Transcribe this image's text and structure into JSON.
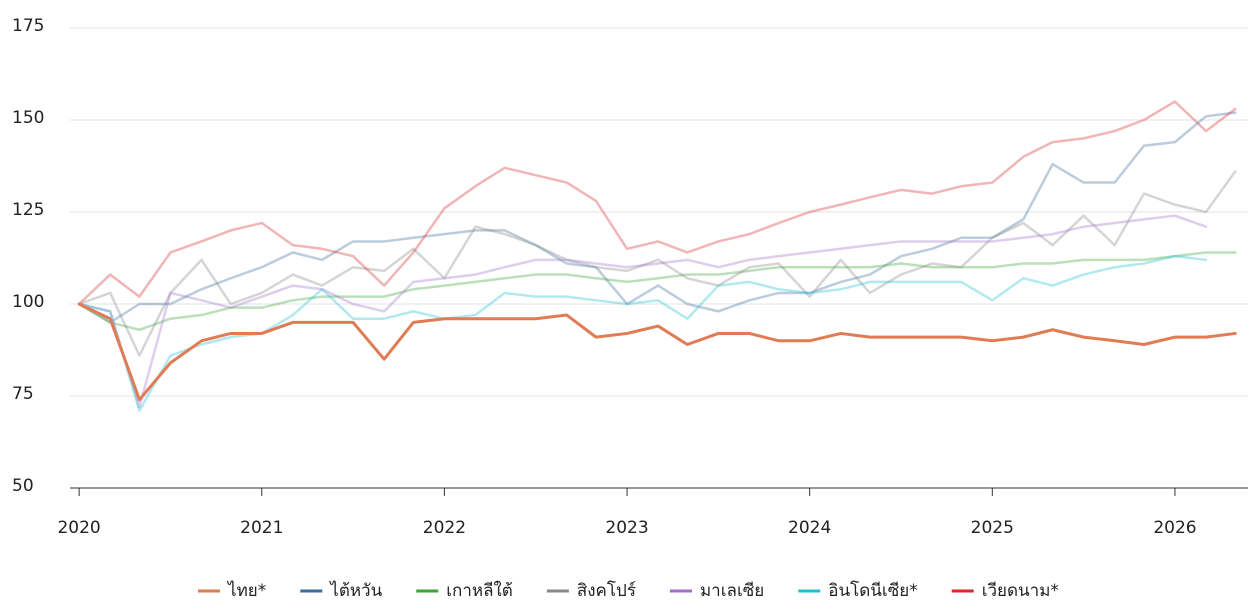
{
  "chart_data": {
    "type": "line",
    "x": [
      2020,
      2020.17,
      2020.33,
      2020.5,
      2020.67,
      2020.83,
      2021,
      2021.17,
      2021.33,
      2021.5,
      2021.67,
      2021.83,
      2022,
      2022.17,
      2022.33,
      2022.5,
      2022.67,
      2022.83,
      2023,
      2023.17,
      2023.33,
      2023.5,
      2023.67,
      2023.83,
      2024,
      2024.17,
      2024.33,
      2024.5,
      2024.67,
      2024.83,
      2025,
      2025.17,
      2025.33,
      2025.5,
      2025.67,
      2025.83,
      2026,
      2026.17,
      2026.33
    ],
    "series": [
      {
        "name": "ไทย*",
        "color": "#e07b53",
        "highlight": true,
        "values": [
          100,
          96,
          74,
          84,
          90,
          92,
          92,
          95,
          95,
          95,
          85,
          95,
          96,
          96,
          96,
          96,
          97,
          91,
          92,
          94,
          89,
          92,
          92,
          90,
          90,
          92,
          91,
          91,
          91,
          91,
          90,
          91,
          93,
          91,
          90,
          89,
          91,
          91,
          92
        ]
      },
      {
        "name": "ไต้หวัน",
        "color": "#3b6e9e",
        "values": [
          100,
          95,
          100,
          100,
          104,
          107,
          110,
          114,
          112,
          117,
          117,
          118,
          119,
          120,
          120,
          116,
          111,
          110,
          100,
          105,
          100,
          98,
          101,
          103,
          103,
          106,
          108,
          113,
          115,
          118,
          118,
          123,
          138,
          133,
          133,
          143,
          144,
          151,
          152
        ]
      },
      {
        "name": "เกาหลีใต้",
        "color": "#3aa53a",
        "values": [
          100,
          95,
          93,
          96,
          97,
          99,
          99,
          101,
          102,
          102,
          102,
          104,
          105,
          106,
          107,
          108,
          108,
          107,
          106,
          107,
          108,
          108,
          109,
          110,
          110,
          110,
          110,
          111,
          110,
          110,
          110,
          111,
          111,
          112,
          112,
          112,
          113,
          114,
          114
        ]
      },
      {
        "name": "สิงคโปร์",
        "color": "#888888",
        "values": [
          100,
          103,
          86,
          103,
          112,
          100,
          103,
          108,
          105,
          110,
          109,
          115,
          107,
          121,
          119,
          116,
          112,
          110,
          109,
          112,
          107,
          105,
          110,
          111,
          102,
          112,
          103,
          108,
          111,
          110,
          118,
          122,
          116,
          124,
          116,
          130,
          127,
          125,
          136
        ]
      },
      {
        "name": "มาเลเซีย",
        "color": "#a070c8",
        "values": [
          100,
          98,
          72,
          103,
          101,
          99,
          102,
          105,
          104,
          100,
          98,
          106,
          107,
          108,
          110,
          112,
          112,
          111,
          110,
          111,
          112,
          110,
          112,
          113,
          114,
          115,
          116,
          117,
          117,
          117,
          117,
          118,
          119,
          121,
          122,
          123,
          124,
          121,
          null
        ]
      },
      {
        "name": "อินโดนีเซีย*",
        "color": "#1fbfd0",
        "values": [
          100,
          98,
          71,
          86,
          89,
          91,
          92,
          97,
          104,
          96,
          96,
          98,
          96,
          97,
          103,
          102,
          102,
          101,
          100,
          101,
          96,
          105,
          106,
          104,
          103,
          104,
          106,
          106,
          106,
          106,
          101,
          107,
          105,
          108,
          110,
          111,
          113,
          112,
          null
        ]
      },
      {
        "name": "เวียดนาม*",
        "color": "#d62a2a",
        "values": [
          100,
          108,
          102,
          114,
          117,
          120,
          122,
          116,
          115,
          113,
          105,
          114,
          126,
          132,
          137,
          135,
          133,
          128,
          115,
          117,
          114,
          117,
          119,
          122,
          125,
          127,
          129,
          131,
          130,
          132,
          133,
          140,
          144,
          145,
          147,
          150,
          155,
          147,
          153
        ]
      }
    ],
    "xlim": [
      2019.95,
      2026.4
    ],
    "xticks": [
      2020,
      2021,
      2022,
      2023,
      2024,
      2025,
      2026
    ],
    "ylim": [
      50,
      175
    ],
    "yticks": [
      50,
      75,
      100,
      125,
      150,
      175
    ],
    "grid": true,
    "legend": "bottom"
  }
}
